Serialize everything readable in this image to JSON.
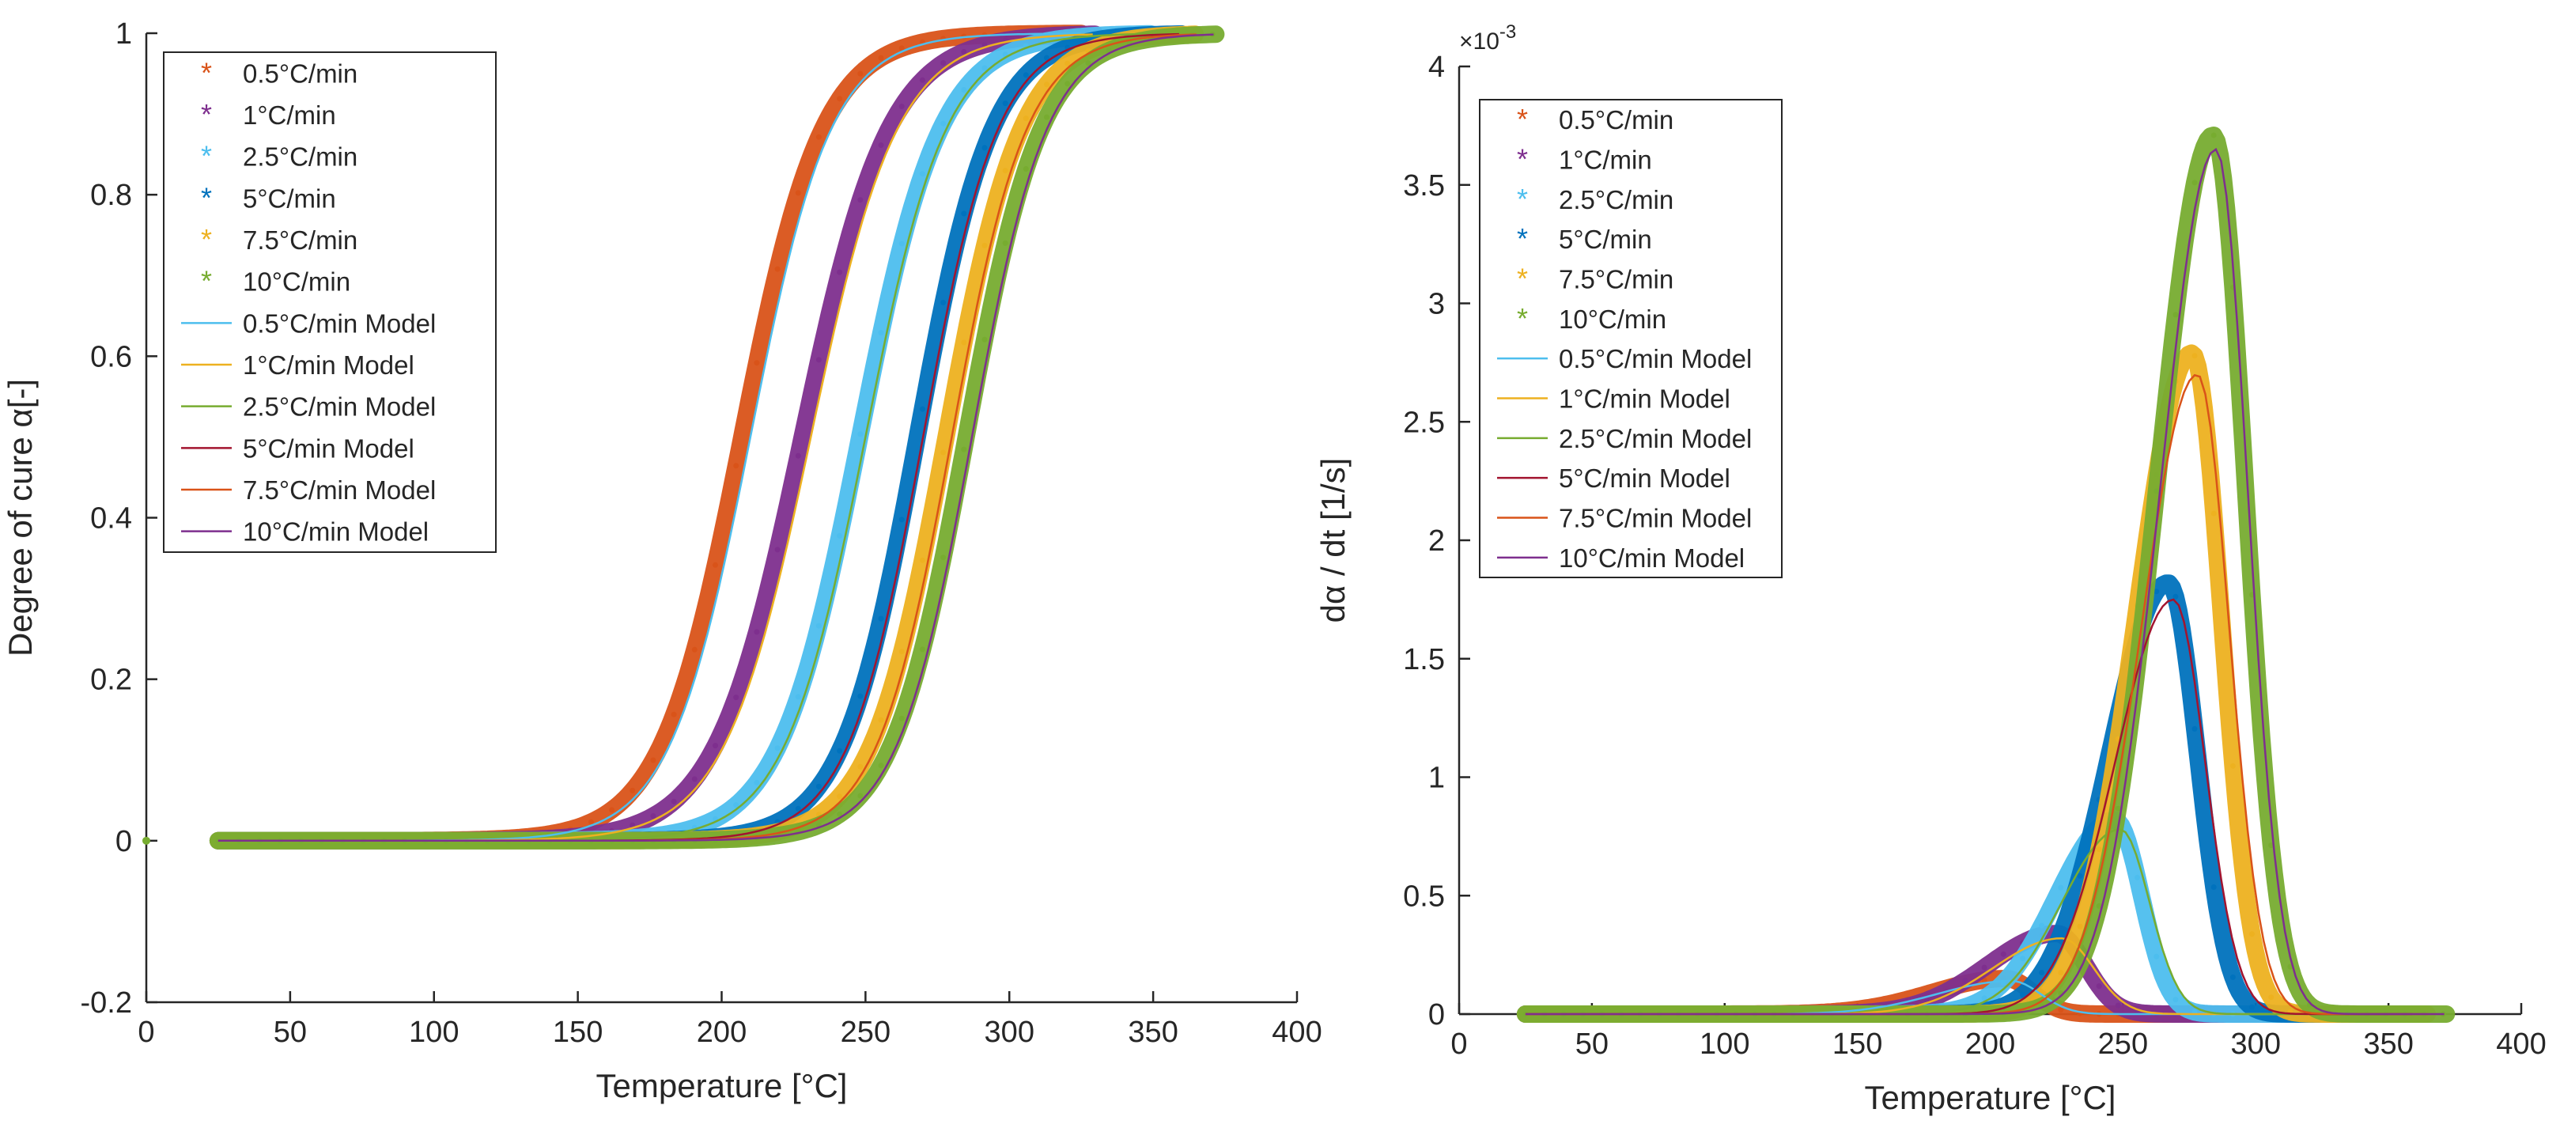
{
  "chart_data": [
    {
      "type": "scatter",
      "xlabel": "Temperature [°C]",
      "ylabel": "Degree of cure α[-]",
      "xlim": [
        0,
        400
      ],
      "ylim": [
        -0.2,
        1
      ],
      "xticks": [
        "0",
        "50",
        "100",
        "150",
        "200",
        "250",
        "300",
        "350",
        "400"
      ],
      "yticks": [
        "-0.2",
        "0",
        "0.2",
        "0.4",
        "0.6",
        "0.8",
        "1"
      ],
      "grid": false,
      "legend_position": "top-left",
      "series": [
        {
          "name": "0.5°C/min",
          "kind": "markers",
          "color": "#d95319",
          "T0": 25,
          "Tend": 325,
          "Tm": 207,
          "w": 14
        },
        {
          "name": "1°C/min",
          "kind": "markers",
          "color": "#7e2f8e",
          "T0": 25,
          "Tend": 330,
          "Tm": 228,
          "w": 15
        },
        {
          "name": "2.5°C/min",
          "kind": "markers",
          "color": "#4dbeee",
          "T0": 25,
          "Tend": 350,
          "Tm": 248,
          "w": 14
        },
        {
          "name": "5°C/min",
          "kind": "markers",
          "color": "#0072bd",
          "T0": 25,
          "Tend": 360,
          "Tm": 268,
          "w": 13
        },
        {
          "name": "7.5°C/min",
          "kind": "markers",
          "color": "#edb120",
          "T0": 25,
          "Tend": 365,
          "Tm": 278,
          "w": 13
        },
        {
          "name": "10°C/min",
          "kind": "markers",
          "color": "#77ac30",
          "T0": 25,
          "Tend": 372,
          "Tm": 285,
          "w": 13
        },
        {
          "name": "0.5°C/min Model",
          "kind": "line",
          "color": "#4dbeee",
          "T0": 25,
          "Tend": 325,
          "Tm": 210,
          "w": 14
        },
        {
          "name": "1°C/min Model",
          "kind": "line",
          "color": "#edb120",
          "T0": 25,
          "Tend": 330,
          "Tm": 231,
          "w": 15
        },
        {
          "name": "2.5°C/min Model",
          "kind": "line",
          "color": "#77ac30",
          "T0": 25,
          "Tend": 350,
          "Tm": 250,
          "w": 14
        },
        {
          "name": "5°C/min Model",
          "kind": "line",
          "color": "#a2142f",
          "T0": 25,
          "Tend": 360,
          "Tm": 270,
          "w": 13
        },
        {
          "name": "7.5°C/min Model",
          "kind": "line",
          "color": "#d95319",
          "T0": 25,
          "Tend": 365,
          "Tm": 280,
          "w": 13
        },
        {
          "name": "10°C/min Model",
          "kind": "line",
          "color": "#7e2f8e",
          "T0": 25,
          "Tend": 372,
          "Tm": 287,
          "w": 13
        }
      ],
      "stray_point": {
        "x": 0,
        "y": 0,
        "color": "#77ac30"
      }
    },
    {
      "type": "scatter",
      "xlabel": "Temperature [°C]",
      "ylabel": "dα / dt [1/s]",
      "xlim": [
        0,
        400
      ],
      "ylim": [
        0,
        4
      ],
      "exponent": "×10",
      "exponent_power": "-3",
      "xticks": [
        "0",
        "50",
        "100",
        "150",
        "200",
        "250",
        "300",
        "350",
        "400"
      ],
      "yticks": [
        "0",
        "0.5",
        "1",
        "1.5",
        "2",
        "2.5",
        "3",
        "3.5",
        "4"
      ],
      "grid": false,
      "legend_position": "top-left",
      "series": [
        {
          "name": "0.5°C/min",
          "kind": "markers",
          "color": "#d95319",
          "T0": 25,
          "Tend": 325,
          "peakT": 206,
          "peak": 0.15,
          "wl": 28,
          "wr": 10
        },
        {
          "name": "1°C/min",
          "kind": "markers",
          "color": "#7e2f8e",
          "T0": 25,
          "Tend": 330,
          "peakT": 225,
          "peak": 0.34,
          "wl": 26,
          "wr": 11
        },
        {
          "name": "2.5°C/min",
          "kind": "markers",
          "color": "#4dbeee",
          "T0": 25,
          "Tend": 350,
          "peakT": 247,
          "peak": 0.82,
          "wl": 22,
          "wr": 10
        },
        {
          "name": "5°C/min",
          "kind": "markers",
          "color": "#0072bd",
          "T0": 25,
          "Tend": 360,
          "peakT": 267,
          "peak": 1.82,
          "wl": 22,
          "wr": 11
        },
        {
          "name": "7.5°C/min",
          "kind": "markers",
          "color": "#edb120",
          "T0": 25,
          "Tend": 365,
          "peakT": 276,
          "peak": 2.79,
          "wl": 21,
          "wr": 11
        },
        {
          "name": "10°C/min",
          "kind": "markers",
          "color": "#77ac30",
          "T0": 25,
          "Tend": 372,
          "peakT": 284,
          "peak": 3.71,
          "wl": 21,
          "wr": 12
        },
        {
          "name": "0.5°C/min Model",
          "kind": "line",
          "color": "#4dbeee",
          "T0": 25,
          "Tend": 325,
          "peakT": 208,
          "peak": 0.14,
          "wl": 28,
          "wr": 11
        },
        {
          "name": "1°C/min Model",
          "kind": "line",
          "color": "#edb120",
          "T0": 25,
          "Tend": 330,
          "peakT": 227,
          "peak": 0.32,
          "wl": 26,
          "wr": 12
        },
        {
          "name": "2.5°C/min Model",
          "kind": "line",
          "color": "#77ac30",
          "T0": 25,
          "Tend": 350,
          "peakT": 249,
          "peak": 0.78,
          "wl": 22,
          "wr": 11
        },
        {
          "name": "5°C/min Model",
          "kind": "line",
          "color": "#a2142f",
          "T0": 25,
          "Tend": 360,
          "peakT": 269,
          "peak": 1.75,
          "wl": 22,
          "wr": 12
        },
        {
          "name": "7.5°C/min Model",
          "kind": "line",
          "color": "#d95319",
          "T0": 25,
          "Tend": 365,
          "peakT": 278,
          "peak": 2.7,
          "wl": 21,
          "wr": 12
        },
        {
          "name": "10°C/min Model",
          "kind": "line",
          "color": "#7e2f8e",
          "T0": 25,
          "Tend": 372,
          "peakT": 285,
          "peak": 3.65,
          "wl": 21,
          "wr": 12
        }
      ]
    }
  ]
}
